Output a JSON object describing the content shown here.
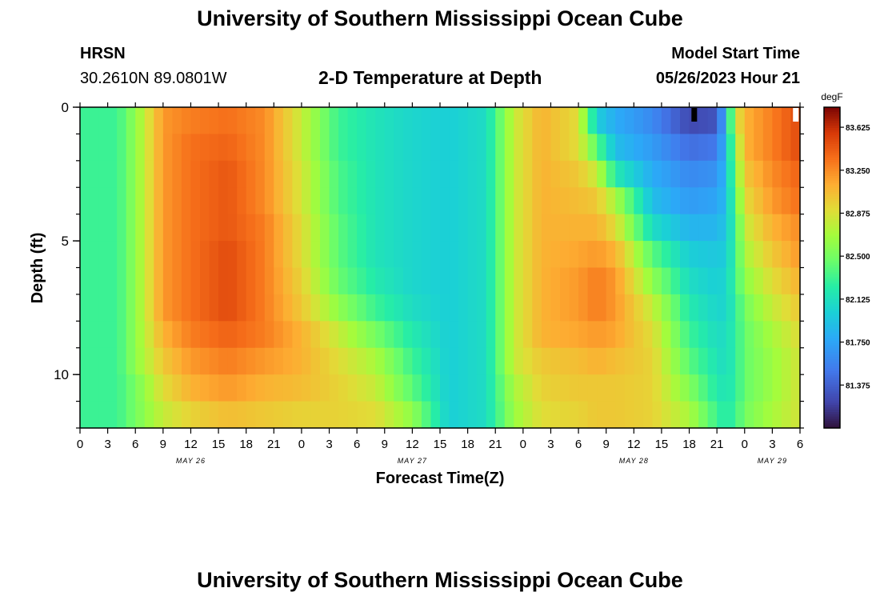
{
  "page": {
    "title": "University of Southern Mississippi Ocean Cube",
    "footer_title": "University of Southern Mississippi Ocean Cube",
    "station": "HRSN",
    "coords": "30.2610N  89.0801W",
    "plot_title": "2-D Temperature at Depth",
    "model_start_label": "Model Start Time",
    "model_start_value": "05/26/2023 Hour 21"
  },
  "chart_data": {
    "type": "heatmap",
    "title": "2-D Temperature at Depth",
    "xlabel": "Forecast Time(Z)",
    "ylabel": "Depth (ft)",
    "x_hours_range": [
      0,
      78
    ],
    "y_range_ft": [
      0,
      12
    ],
    "x_tick_labels": [
      "0",
      "3",
      "6",
      "9",
      "12",
      "15",
      "18",
      "21",
      "0",
      "3",
      "6",
      "9",
      "12",
      "15",
      "18",
      "21",
      "0",
      "3",
      "6",
      "9",
      "12",
      "15",
      "18",
      "21",
      "0",
      "3",
      "6"
    ],
    "day_labels": [
      {
        "label": "MAY 26",
        "hour": 12
      },
      {
        "label": "MAY 27",
        "hour": 36
      },
      {
        "label": "MAY 28",
        "hour": 60
      },
      {
        "label": "MAY 29",
        "hour": 75
      }
    ],
    "y_tick_labels": [
      {
        "label": "0",
        "value": 0
      },
      {
        "label": "5",
        "value": 5
      },
      {
        "label": "10",
        "value": 10
      }
    ],
    "colorbar": {
      "unit": "degF",
      "min": 81.0,
      "max": 83.8,
      "tick_labels": [
        "83.625",
        "83.250",
        "82.875",
        "82.500",
        "82.125",
        "81.750",
        "81.375"
      ],
      "tick_values": [
        83.625,
        83.25,
        82.875,
        82.5,
        82.125,
        81.75,
        81.375
      ]
    },
    "depth_levels_ft": [
      0.5,
      1.5,
      2.5,
      3.5,
      4.5,
      5.5,
      6.5,
      7.5,
      8.5,
      9.5,
      10.5,
      11.5
    ],
    "hour_step": 1,
    "temperature_keyframes_degF": {
      "hours": [
        0,
        4,
        6,
        9,
        12,
        16,
        20,
        24,
        28,
        32,
        36,
        40,
        44,
        47,
        50,
        54,
        56,
        58,
        62,
        66,
        69,
        70,
        71,
        72,
        75,
        78
      ],
      "by_depth": [
        [
          82.3,
          82.3,
          82.6,
          83.2,
          83.3,
          83.35,
          83.25,
          82.8,
          82.3,
          82.15,
          82.05,
          82.0,
          82.1,
          82.8,
          83.1,
          82.9,
          82.0,
          81.8,
          81.6,
          81.25,
          81.3,
          81.9,
          82.8,
          83.1,
          83.3,
          83.5
        ],
        [
          82.3,
          82.3,
          82.6,
          83.2,
          83.35,
          83.4,
          83.25,
          82.8,
          82.3,
          82.15,
          82.05,
          82.0,
          82.1,
          82.8,
          83.1,
          82.9,
          82.4,
          81.9,
          81.7,
          81.45,
          81.5,
          81.9,
          82.6,
          83.1,
          83.3,
          83.5
        ],
        [
          82.3,
          82.3,
          82.6,
          83.2,
          83.35,
          83.45,
          83.25,
          82.85,
          82.35,
          82.15,
          82.05,
          82.0,
          82.1,
          82.8,
          83.1,
          83.0,
          82.8,
          82.2,
          81.8,
          81.6,
          81.65,
          81.9,
          82.5,
          83.0,
          83.25,
          83.4
        ],
        [
          82.3,
          82.3,
          82.6,
          83.2,
          83.35,
          83.45,
          83.25,
          82.85,
          82.35,
          82.15,
          82.05,
          82.0,
          82.1,
          82.8,
          83.1,
          83.05,
          83.0,
          82.7,
          81.9,
          81.7,
          81.75,
          81.9,
          82.4,
          82.9,
          83.2,
          83.35
        ],
        [
          82.3,
          82.3,
          82.6,
          83.2,
          83.35,
          83.45,
          83.3,
          82.9,
          82.4,
          82.15,
          82.05,
          82.0,
          82.1,
          82.8,
          83.1,
          83.1,
          83.1,
          82.9,
          82.1,
          81.85,
          81.85,
          81.95,
          82.3,
          82.8,
          83.1,
          83.25
        ],
        [
          82.3,
          82.3,
          82.6,
          83.2,
          83.35,
          83.5,
          83.3,
          82.9,
          82.4,
          82.15,
          82.05,
          82.0,
          82.1,
          82.8,
          83.1,
          83.15,
          83.2,
          83.1,
          82.4,
          82.0,
          81.95,
          82.0,
          82.3,
          82.7,
          83.0,
          83.2
        ],
        [
          82.3,
          82.3,
          82.6,
          83.2,
          83.35,
          83.5,
          83.3,
          82.95,
          82.45,
          82.2,
          82.05,
          82.0,
          82.1,
          82.8,
          83.1,
          83.2,
          83.3,
          83.2,
          82.6,
          82.1,
          82.0,
          82.05,
          82.3,
          82.6,
          82.9,
          83.1
        ],
        [
          82.3,
          82.3,
          82.6,
          83.2,
          83.35,
          83.5,
          83.3,
          83.0,
          82.6,
          82.3,
          82.1,
          82.0,
          82.1,
          82.8,
          83.1,
          83.2,
          83.3,
          83.2,
          82.8,
          82.2,
          82.05,
          82.05,
          82.25,
          82.5,
          82.8,
          83.0
        ],
        [
          82.3,
          82.3,
          82.6,
          83.1,
          83.3,
          83.4,
          83.3,
          83.1,
          82.8,
          82.5,
          82.2,
          82.0,
          82.1,
          82.8,
          83.1,
          83.15,
          83.2,
          83.15,
          82.9,
          82.3,
          82.1,
          82.1,
          82.25,
          82.45,
          82.7,
          82.9
        ],
        [
          82.3,
          82.3,
          82.6,
          83.0,
          83.2,
          83.3,
          83.2,
          83.1,
          82.9,
          82.7,
          82.3,
          82.0,
          82.1,
          82.8,
          83.0,
          83.05,
          83.1,
          83.05,
          82.95,
          82.4,
          82.15,
          82.1,
          82.25,
          82.45,
          82.65,
          82.85
        ],
        [
          82.3,
          82.3,
          82.5,
          82.9,
          83.1,
          83.2,
          83.1,
          83.05,
          82.95,
          82.8,
          82.4,
          82.0,
          82.1,
          82.7,
          82.95,
          83.0,
          83.0,
          83.0,
          82.95,
          82.55,
          82.2,
          82.15,
          82.25,
          82.45,
          82.65,
          82.85
        ],
        [
          82.3,
          82.3,
          82.5,
          82.8,
          82.95,
          83.05,
          83.0,
          82.95,
          82.95,
          82.9,
          82.6,
          82.0,
          82.1,
          82.65,
          82.9,
          82.95,
          83.0,
          83.0,
          82.95,
          82.7,
          82.3,
          82.2,
          82.3,
          82.5,
          82.7,
          82.85
        ]
      ]
    },
    "markers": [
      {
        "label": "black",
        "hour": 66.5,
        "depth": 0
      },
      {
        "label": "white",
        "hour": 77.5,
        "depth": 0
      }
    ]
  }
}
